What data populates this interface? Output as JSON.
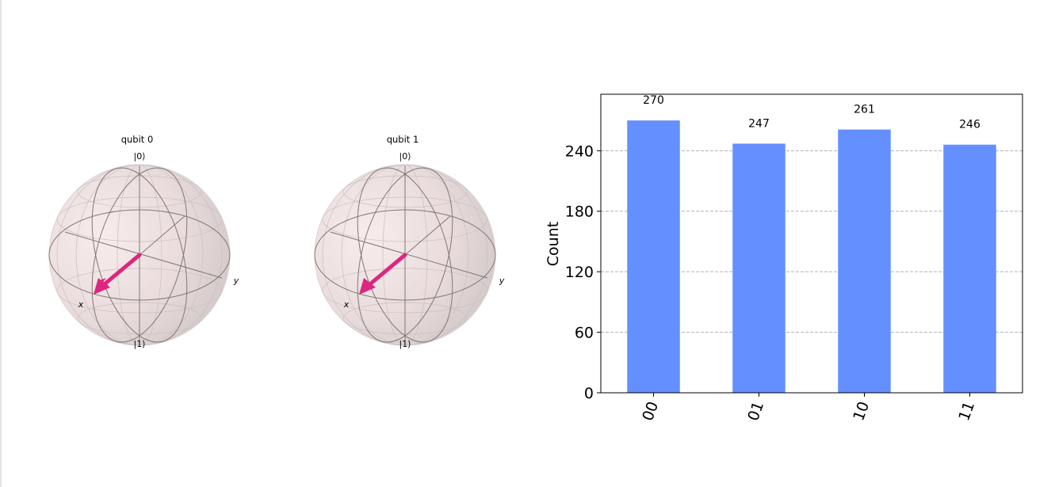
{
  "bloch_spheres": [
    {
      "title": "qubit 0",
      "top_label": "|0⟩",
      "bottom_label": "|1⟩",
      "x_label": "x",
      "y_label": "y"
    },
    {
      "title": "qubit 1",
      "top_label": "|0⟩",
      "bottom_label": "|1⟩",
      "x_label": "x",
      "y_label": "y"
    }
  ],
  "chart_data": {
    "type": "bar",
    "categories": [
      "00",
      "01",
      "10",
      "11"
    ],
    "values": [
      270,
      247,
      261,
      246
    ],
    "xlabel": "",
    "ylabel": "Count",
    "ylim": [
      0,
      296
    ],
    "yticks": [
      0,
      60,
      120,
      180,
      240
    ],
    "grid": "y-dashed",
    "colors": {
      "bar": "#648fff",
      "grid": "#b0b0b0",
      "axis": "#000000",
      "vector": "#dc267f"
    }
  }
}
